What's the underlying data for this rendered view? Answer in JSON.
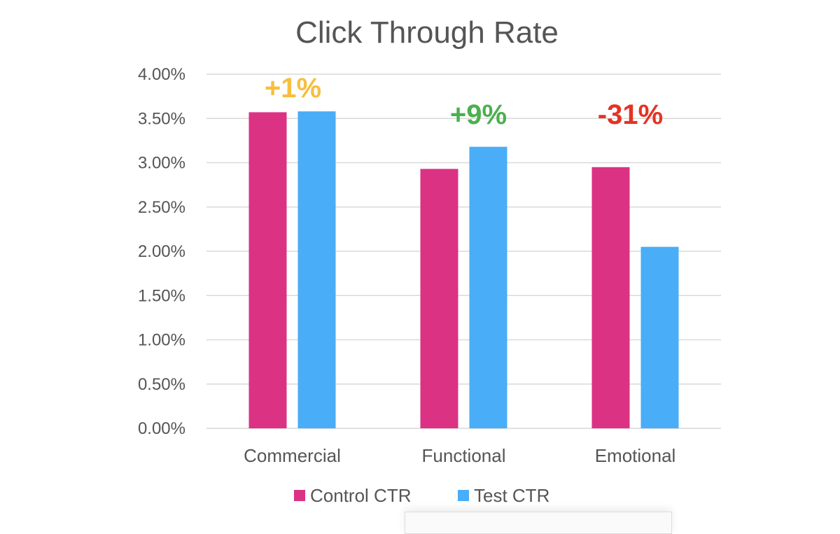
{
  "chart_data": {
    "type": "bar",
    "title": "Click Through Rate",
    "xlabel": "",
    "ylabel": "",
    "categories": [
      "Commercial",
      "Functional",
      "Emotional"
    ],
    "series": [
      {
        "name": "Control CTR",
        "color": "#DB3284",
        "values": [
          3.57,
          2.93,
          2.95
        ]
      },
      {
        "name": "Test CTR",
        "color": "#4AADF7",
        "values": [
          3.58,
          3.18,
          2.05
        ]
      }
    ],
    "ylim": [
      0,
      4
    ],
    "yticks": [
      "0.00%",
      "0.50%",
      "1.00%",
      "1.50%",
      "2.00%",
      "2.50%",
      "3.00%",
      "3.50%",
      "4.00%"
    ],
    "ytick_values": [
      0,
      0.5,
      1,
      1.5,
      2,
      2.5,
      3,
      3.5,
      4
    ],
    "grid": true,
    "legend_position": "bottom",
    "annotations": [
      {
        "text": "+1%",
        "category": "Commercial",
        "y": 3.85,
        "color": "#F7BE3E"
      },
      {
        "text": "+9%",
        "category": "Functional",
        "y": 3.55,
        "color": "#4CAF50"
      },
      {
        "text": "-31%",
        "category": "Emotional",
        "y": 3.55,
        "color": "#E53323"
      }
    ]
  }
}
